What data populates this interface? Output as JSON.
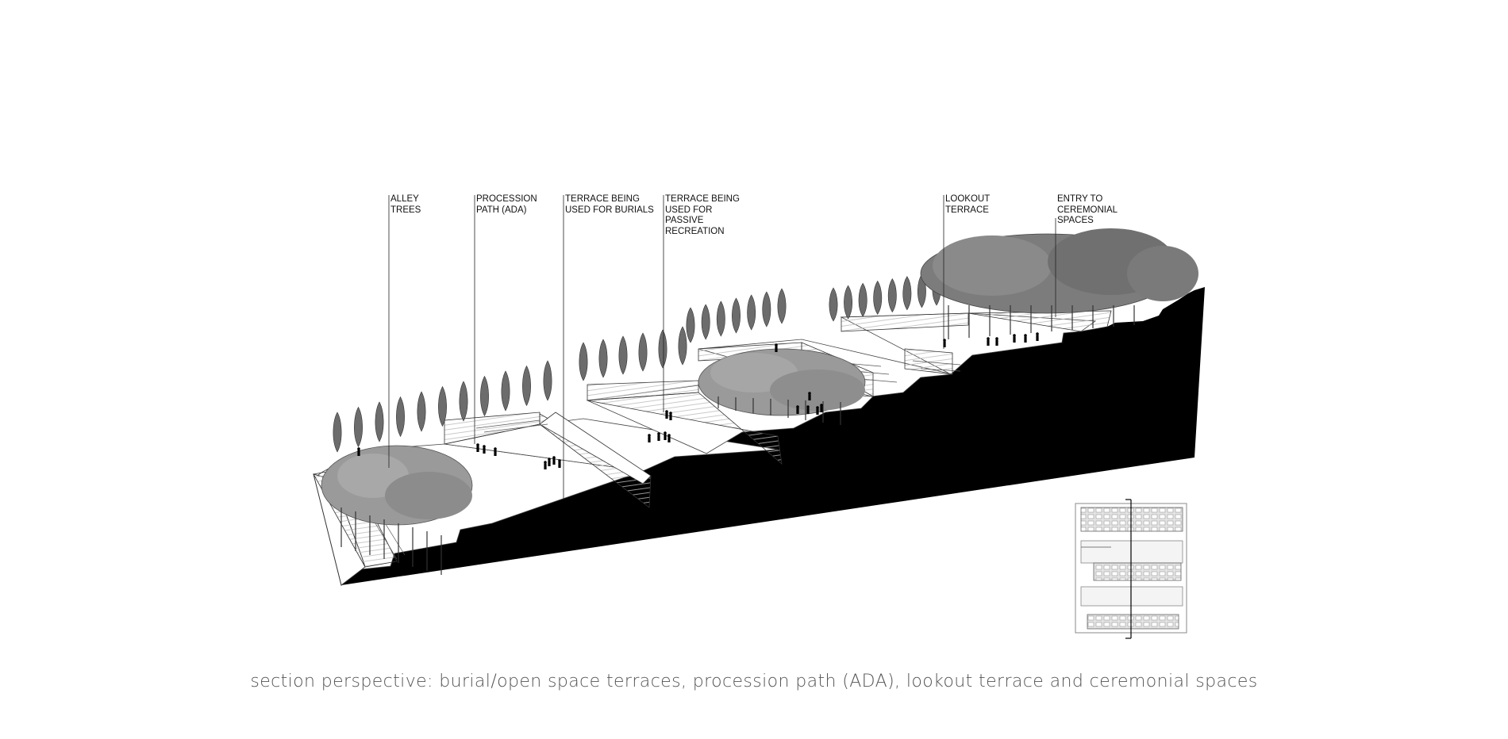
{
  "callouts": [
    {
      "id": "alley-trees",
      "text": "ALLEY\nTREES"
    },
    {
      "id": "procession-path",
      "text": "PROCESSION\nPATH (ADA)"
    },
    {
      "id": "terrace-burials",
      "text": "TERRACE BEING\nUSED FOR BURIALS"
    },
    {
      "id": "terrace-recreation",
      "text": "TERRACE BEING\nUSED FOR\nPASSIVE\nRECREATION"
    },
    {
      "id": "lookout-terrace",
      "text": "LOOKOUT\nTERRACE"
    },
    {
      "id": "entry-ceremonial",
      "text": "ENTRY TO\nCEREMONIAL\nSPACES"
    }
  ],
  "caption": "section perspective: burial/open space terraces, procession path (ADA), lookout terrace and ceremonial spaces",
  "colors": {
    "ground": "#000000",
    "canopy": "#8a8a8a",
    "cypress": "#6e6e6e",
    "wall": "#f2f2f2",
    "line": "#333333"
  }
}
